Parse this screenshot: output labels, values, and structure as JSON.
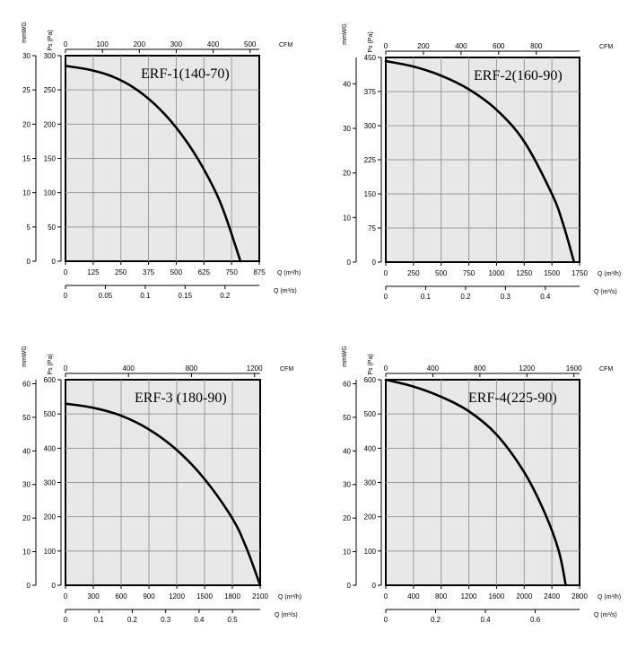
{
  "chart_data": [
    {
      "type": "line",
      "title": "ERF-1(140-70)",
      "top_unit": "CFM",
      "top_ticks": [
        "0",
        "100",
        "200",
        "300",
        "400",
        "500"
      ],
      "top_max": 525,
      "left_unit": "mmWG",
      "left_ticks": [
        "0",
        "5",
        "10",
        "15",
        "20",
        "25",
        "30"
      ],
      "left_max": 30,
      "ps_unit": "Ps (Pa)",
      "ps_ticks": [
        "0",
        "50",
        "100",
        "150",
        "200",
        "250",
        "300"
      ],
      "ps_max": 300,
      "q_unit": "Q (m³/h)",
      "q_ticks": [
        "0",
        "125",
        "250",
        "375",
        "500",
        "625",
        "750",
        "875"
      ],
      "q_max": 875,
      "qs_unit": "Q (m³/s)",
      "qs_ticks": [
        "0",
        "0.05",
        "0.1",
        "0.15",
        "0.2"
      ],
      "qs_max": 0.243,
      "x_label": "Q (m³/h)",
      "y_label": "Ps (Pa)",
      "xlim": [
        0,
        875
      ],
      "ylim": [
        0,
        300
      ],
      "x": [
        0,
        100,
        200,
        300,
        400,
        500,
        600,
        700,
        790
      ],
      "y": [
        285,
        280,
        271,
        255,
        230,
        195,
        148,
        85,
        0
      ]
    },
    {
      "type": "line",
      "title": "ERF-2(160-90)",
      "top_unit": "CFM",
      "top_ticks": [
        "0",
        "200",
        "400",
        "600",
        "800"
      ],
      "top_max": 1030,
      "left_unit": "mmWG",
      "left_ticks": [
        "0",
        "10",
        "20",
        "30",
        "40"
      ],
      "left_max": 45.9,
      "ps_unit": "Ps (Pa)",
      "ps_ticks": [
        "0",
        "75",
        "150",
        "225",
        "300",
        "375",
        "450"
      ],
      "ps_max": 450,
      "q_unit": "Q (m³/h)",
      "q_ticks": [
        "0",
        "250",
        "500",
        "750",
        "1000",
        "1250",
        "1500",
        "1750"
      ],
      "q_max": 1750,
      "qs_unit": "Q (m³/s)",
      "qs_ticks": [
        "0",
        "0.1",
        "0.2",
        "0.3",
        "0.4"
      ],
      "qs_max": 0.486,
      "x_label": "Q (m³/h)",
      "y_label": "Ps (Pa)",
      "xlim": [
        0,
        1750
      ],
      "ylim": [
        0,
        450
      ],
      "x": [
        0,
        250,
        500,
        750,
        1000,
        1250,
        1500,
        1600,
        1700
      ],
      "y": [
        442,
        430,
        410,
        380,
        335,
        265,
        150,
        85,
        0
      ]
    },
    {
      "type": "line",
      "title": "ERF-3 (180-90)",
      "top_unit": "CFM",
      "top_ticks": [
        "0",
        "400",
        "800",
        "1200"
      ],
      "top_max": 1236,
      "left_unit": "mmWG",
      "left_ticks": [
        "0",
        "10",
        "20",
        "30",
        "40",
        "50",
        "60"
      ],
      "left_max": 61.2,
      "ps_unit": "Ps (Pa)",
      "ps_ticks": [
        "0",
        "100",
        "200",
        "300",
        "400",
        "500",
        "600"
      ],
      "ps_max": 600,
      "q_unit": "Q (m³/h)",
      "q_ticks": [
        "0",
        "300",
        "600",
        "900",
        "1200",
        "1500",
        "1800",
        "2100"
      ],
      "q_max": 2100,
      "qs_unit": "Q (m³/s)",
      "qs_ticks": [
        "0",
        "0.1",
        "0.2",
        "0.3",
        "0.4",
        "0.5"
      ],
      "qs_max": 0.583,
      "x_label": "Q (m³/h)",
      "y_label": "Ps (Pa)",
      "xlim": [
        0,
        2100
      ],
      "ylim": [
        0,
        600
      ],
      "x": [
        0,
        300,
        600,
        900,
        1200,
        1500,
        1800,
        1950,
        2100
      ],
      "y": [
        530,
        518,
        495,
        455,
        395,
        310,
        195,
        110,
        0
      ]
    },
    {
      "type": "line",
      "title": "ERF-4(225-90)",
      "top_unit": "CFM",
      "top_ticks": [
        "0",
        "400",
        "800",
        "1200",
        "1600"
      ],
      "top_max": 1648,
      "left_unit": "mmWG",
      "left_ticks": [
        "0",
        "10",
        "20",
        "30",
        "40",
        "50",
        "60"
      ],
      "left_max": 61.2,
      "ps_unit": "Ps (Pa)",
      "ps_ticks": [
        "0",
        "100",
        "200",
        "300",
        "400",
        "500",
        "600"
      ],
      "ps_max": 600,
      "q_unit": "Q (m³/h)",
      "q_ticks": [
        "0",
        "400",
        "800",
        "1200",
        "1600",
        "2000",
        "2400",
        "2800"
      ],
      "q_max": 2800,
      "qs_unit": "Q (m³/s)",
      "qs_ticks": [
        "0",
        "0.2",
        "0.4",
        "0.6"
      ],
      "qs_max": 0.778,
      "x_label": "Q (m³/h)",
      "y_label": "Ps (Pa)",
      "xlim": [
        0,
        2800
      ],
      "ylim": [
        0,
        600
      ],
      "x": [
        0,
        400,
        800,
        1200,
        1600,
        2000,
        2300,
        2500,
        2600
      ],
      "y": [
        600,
        580,
        550,
        508,
        440,
        330,
        210,
        100,
        0
      ]
    }
  ]
}
